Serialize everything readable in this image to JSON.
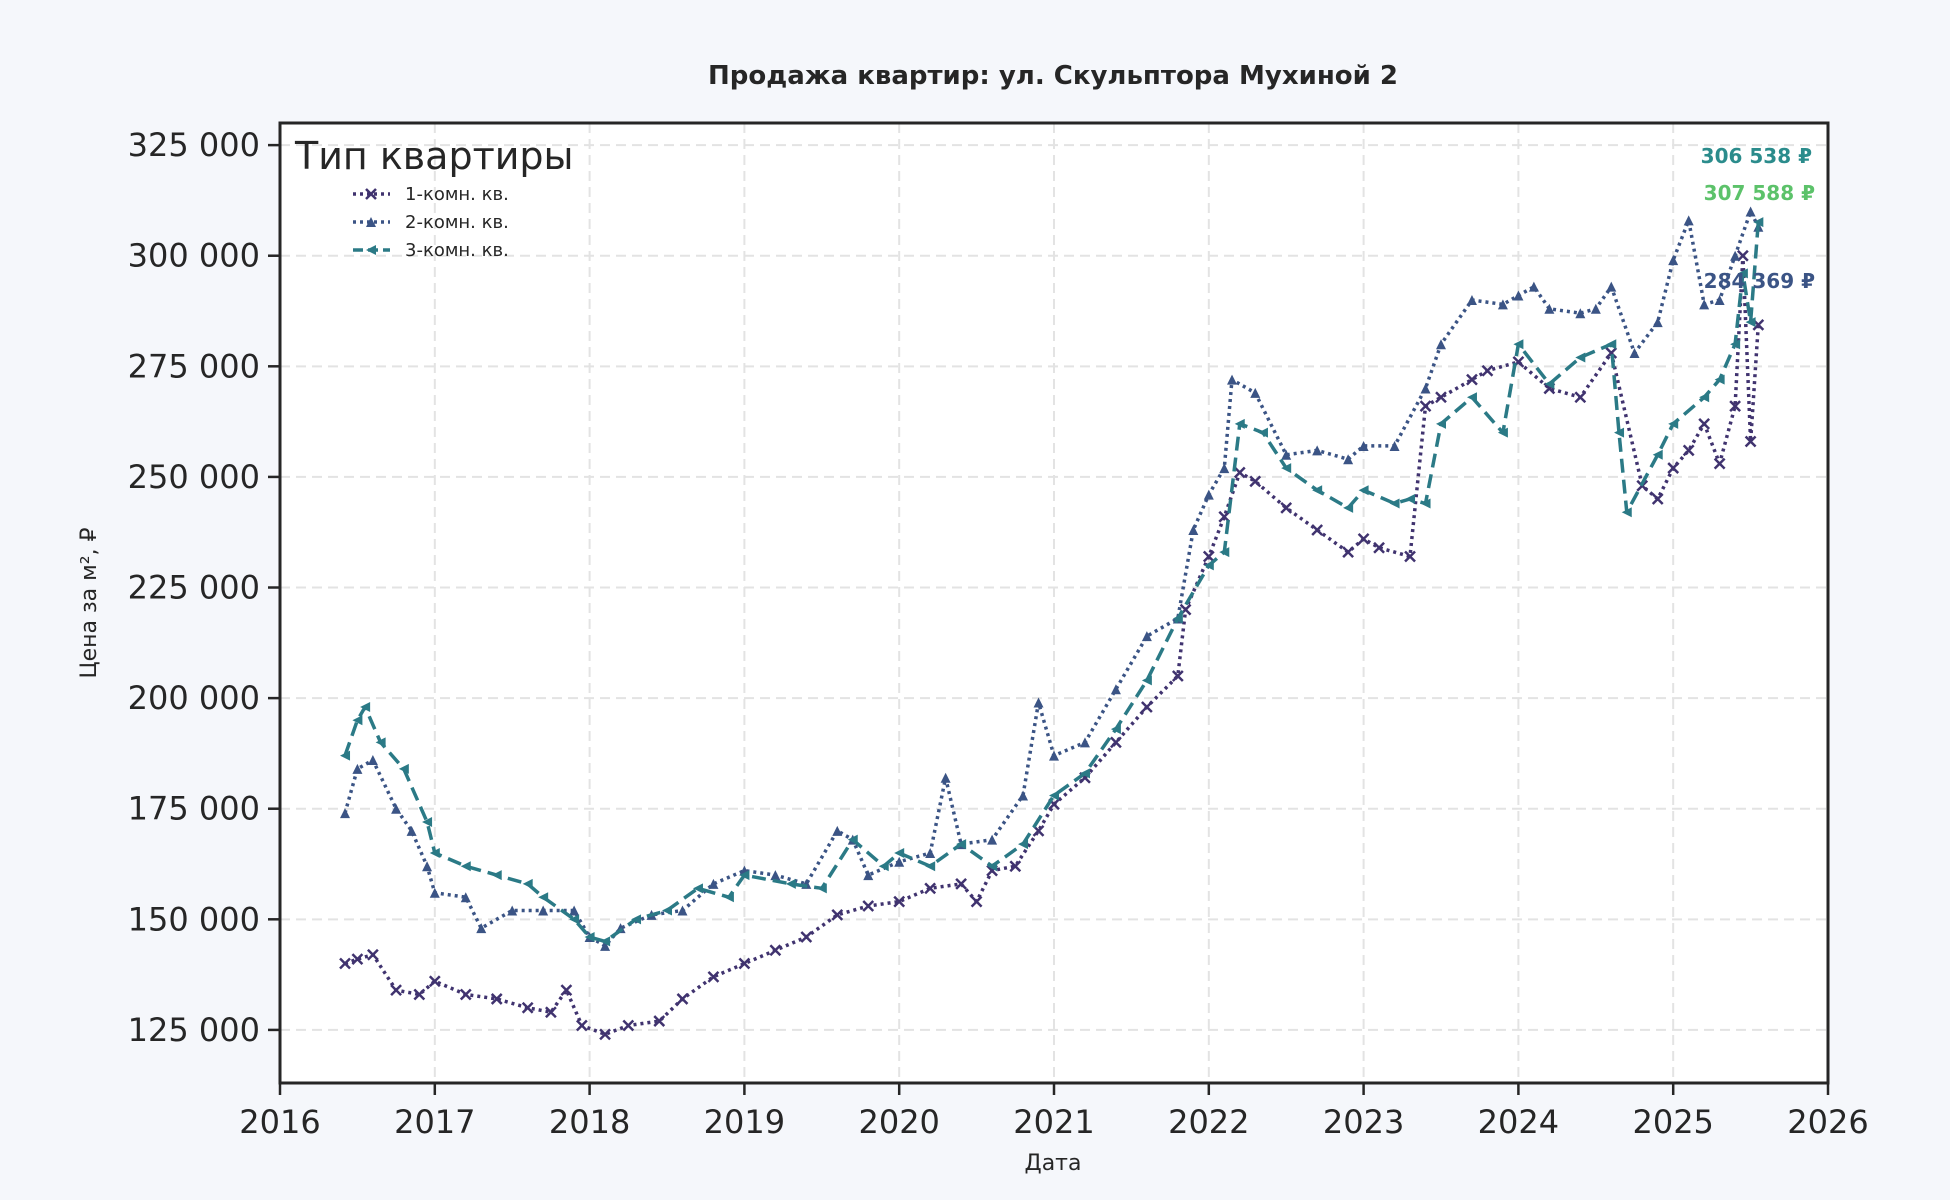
{
  "chart_data": {
    "type": "line",
    "title": "Продажа квартир: ул. Скульптора Мухиной 2",
    "xlabel": "Дата",
    "ylabel": "Цена за м², ₽",
    "xlim": [
      2016.0,
      2026.0
    ],
    "ylim": [
      113000,
      330000
    ],
    "x_ticks": [
      2016,
      2017,
      2018,
      2019,
      2020,
      2021,
      2022,
      2023,
      2024,
      2025,
      2026
    ],
    "x_tick_labels": [
      "2016",
      "2017",
      "2018",
      "2019",
      "2020",
      "2021",
      "2022",
      "2023",
      "2024",
      "2025",
      "2026"
    ],
    "y_ticks": [
      125000,
      150000,
      175000,
      200000,
      225000,
      250000,
      275000,
      300000,
      325000
    ],
    "y_tick_labels": [
      "125 000",
      "150 000",
      "175 000",
      "200 000",
      "225 000",
      "250 000",
      "275 000",
      "300 000",
      "325 000"
    ],
    "grid": true,
    "legend": {
      "title": "Тип квартиры",
      "position": "top-left"
    },
    "series": [
      {
        "name": "1-комн. кв.",
        "color": "#40336f",
        "line_style": "dotted",
        "marker": "x",
        "x": [
          2016.42,
          2016.5,
          2016.6,
          2016.75,
          2016.9,
          2017.0,
          2017.2,
          2017.4,
          2017.6,
          2017.75,
          2017.85,
          2017.95,
          2018.1,
          2018.25,
          2018.45,
          2018.6,
          2018.8,
          2019.0,
          2019.2,
          2019.4,
          2019.6,
          2019.8,
          2020.0,
          2020.2,
          2020.4,
          2020.5,
          2020.6,
          2020.75,
          2020.9,
          2021.0,
          2021.2,
          2021.4,
          2021.6,
          2021.8,
          2021.85,
          2022.0,
          2022.1,
          2022.2,
          2022.3,
          2022.5,
          2022.7,
          2022.9,
          2023.0,
          2023.1,
          2023.3,
          2023.4,
          2023.5,
          2023.7,
          2023.8,
          2024.0,
          2024.2,
          2024.4,
          2024.6,
          2024.8,
          2024.9,
          2025.0,
          2025.1,
          2025.2,
          2025.3,
          2025.4,
          2025.45,
          2025.5,
          2025.55
        ],
        "y": [
          140000,
          141000,
          142000,
          134000,
          133000,
          136000,
          133000,
          132000,
          130000,
          129000,
          134000,
          126000,
          124000,
          126000,
          127000,
          132000,
          137000,
          140000,
          143000,
          146000,
          151000,
          153000,
          154000,
          157000,
          158000,
          154000,
          161000,
          162000,
          170000,
          176000,
          182000,
          190000,
          198000,
          205000,
          220000,
          232000,
          241000,
          251000,
          249000,
          243000,
          238000,
          233000,
          236000,
          234000,
          232000,
          266000,
          268000,
          272000,
          274000,
          276000,
          270000,
          268000,
          278000,
          248000,
          245000,
          252000,
          256000,
          262000,
          253000,
          266000,
          300000,
          258000,
          284369
        ]
      },
      {
        "name": "2-комн. кв.",
        "color": "#3b5485",
        "line_style": "dotted",
        "marker": "^",
        "x": [
          2016.42,
          2016.5,
          2016.6,
          2016.75,
          2016.85,
          2016.95,
          2017.0,
          2017.2,
          2017.3,
          2017.5,
          2017.7,
          2017.9,
          2018.0,
          2018.1,
          2018.2,
          2018.4,
          2018.6,
          2018.8,
          2019.0,
          2019.2,
          2019.4,
          2019.6,
          2019.7,
          2019.8,
          2020.0,
          2020.2,
          2020.3,
          2020.4,
          2020.6,
          2020.8,
          2020.9,
          2021.0,
          2021.2,
          2021.4,
          2021.6,
          2021.8,
          2021.9,
          2022.0,
          2022.1,
          2022.15,
          2022.3,
          2022.5,
          2022.7,
          2022.9,
          2023.0,
          2023.2,
          2023.4,
          2023.5,
          2023.7,
          2023.9,
          2024.0,
          2024.1,
          2024.2,
          2024.4,
          2024.5,
          2024.6,
          2024.75,
          2024.9,
          2025.0,
          2025.1,
          2025.2,
          2025.3,
          2025.4,
          2025.5,
          2025.55
        ],
        "y": [
          174000,
          184000,
          186000,
          175000,
          170000,
          162000,
          156000,
          155000,
          148000,
          152000,
          152000,
          152000,
          146000,
          144000,
          148000,
          151000,
          152000,
          158000,
          161000,
          160000,
          158000,
          170000,
          168000,
          160000,
          163000,
          165000,
          182000,
          167000,
          168000,
          178000,
          199000,
          187000,
          190000,
          202000,
          214000,
          218000,
          238000,
          246000,
          252000,
          272000,
          269000,
          255000,
          256000,
          254000,
          257000,
          257000,
          270000,
          280000,
          290000,
          289000,
          291000,
          293000,
          288000,
          287000,
          288000,
          293000,
          278000,
          285000,
          299000,
          308000,
          289000,
          290000,
          300000,
          310000,
          306538
        ]
      },
      {
        "name": "3-комн. кв.",
        "color": "#2b7a86",
        "line_style": "dashed",
        "marker": "<",
        "x": [
          2016.42,
          2016.5,
          2016.55,
          2016.65,
          2016.8,
          2016.95,
          2017.0,
          2017.2,
          2017.4,
          2017.6,
          2017.7,
          2017.9,
          2018.0,
          2018.1,
          2018.3,
          2018.5,
          2018.7,
          2018.9,
          2019.0,
          2019.3,
          2019.5,
          2019.7,
          2019.9,
          2020.0,
          2020.2,
          2020.4,
          2020.6,
          2020.8,
          2021.0,
          2021.2,
          2021.4,
          2021.6,
          2021.8,
          2022.0,
          2022.1,
          2022.2,
          2022.35,
          2022.5,
          2022.7,
          2022.9,
          2023.0,
          2023.2,
          2023.3,
          2023.4,
          2023.5,
          2023.7,
          2023.9,
          2024.0,
          2024.2,
          2024.4,
          2024.6,
          2024.65,
          2024.7,
          2024.9,
          2025.0,
          2025.2,
          2025.3,
          2025.4,
          2025.45,
          2025.5,
          2025.55
        ],
        "y": [
          187000,
          195000,
          198000,
          190000,
          184000,
          172000,
          165000,
          162000,
          160000,
          158000,
          155000,
          150000,
          146000,
          145000,
          150000,
          152000,
          157000,
          155000,
          160000,
          158000,
          157000,
          168000,
          162000,
          165000,
          162000,
          167000,
          162000,
          167000,
          178000,
          183000,
          193000,
          204000,
          218000,
          230000,
          233000,
          262000,
          260000,
          252000,
          247000,
          243000,
          247000,
          244000,
          245000,
          244000,
          262000,
          268000,
          260000,
          280000,
          271000,
          277000,
          280000,
          260000,
          242000,
          255000,
          262000,
          268000,
          272000,
          280000,
          296000,
          285000,
          307588
        ]
      }
    ],
    "end_labels": [
      {
        "text": "306 538 ₽",
        "color": "#2b8c8c"
      },
      {
        "text": "307 588 ₽",
        "color": "#5cc26a"
      },
      {
        "text": "284 369 ₽",
        "color": "#3b5485"
      }
    ]
  }
}
